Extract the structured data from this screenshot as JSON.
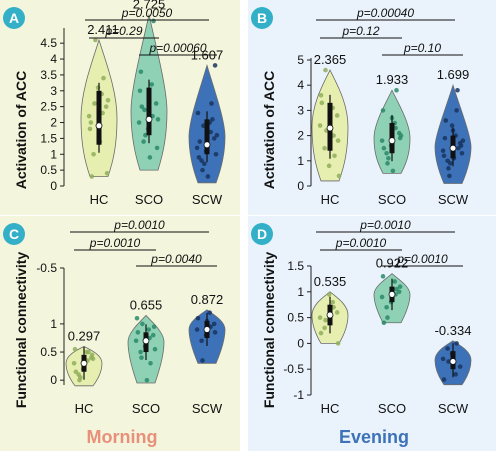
{
  "footer": {
    "left": "Morning",
    "right": "Evening",
    "left_color": "#e8907a",
    "right_color": "#3d72b8"
  },
  "colors": {
    "HC": "#e6eeb0",
    "SCO": "#8fd1b5",
    "SCW": "#3d72b8",
    "badge": "#33b0c8"
  },
  "chart_data": [
    {
      "panel": "A",
      "type": "violin",
      "ylabel": "Activation of ACC",
      "categories": [
        "HC",
        "SCO",
        "SCW"
      ],
      "ylim": [
        0,
        4.6
      ],
      "yticks": [
        0,
        0.5,
        1,
        1.5,
        2,
        2.5,
        3,
        3.5,
        4,
        4.5
      ],
      "ytick_labels": [
        "0",
        "0.5",
        "1",
        "1.5",
        "2",
        "2.5",
        "3",
        "3.5",
        "4",
        "4.5"
      ],
      "means": [
        "2.411",
        "2.725",
        "1.607"
      ],
      "violins": [
        {
          "min": 0.3,
          "max": 4.6,
          "median": 1.9,
          "q1": 1.3,
          "q3": 3.0
        },
        {
          "min": 0.5,
          "max": 5.4,
          "median": 2.1,
          "q1": 1.6,
          "q3": 3.1
        },
        {
          "min": 0.1,
          "max": 3.8,
          "median": 1.3,
          "q1": 1.0,
          "q3": 2.1
        }
      ],
      "points": [
        [
          2.2,
          2.9,
          1.0,
          2.5,
          3.1,
          1.8,
          2.3,
          2.6,
          0.4,
          1.6,
          2.0,
          3.4,
          4.6,
          2.7,
          1.4,
          0.3
        ],
        [
          2.0,
          3.2,
          1.4,
          2.6,
          1.8,
          3.0,
          2.2,
          2.4,
          1.2,
          2.9,
          3.6,
          5.2,
          1.6,
          2.1,
          0.9,
          2.5
        ],
        [
          1.2,
          2.0,
          0.8,
          1.5,
          1.1,
          2.3,
          1.7,
          0.5,
          3.8,
          1.3,
          0.9,
          2.6,
          1.9,
          1.0,
          0.3,
          1.4,
          2.1,
          0.7,
          1.6
        ]
      ],
      "comparisons": [
        {
          "pair": [
            0,
            2
          ],
          "label": "p=0.0050"
        },
        {
          "pair": [
            0,
            1
          ],
          "label": "p=0.29"
        },
        {
          "pair": [
            1,
            2
          ],
          "label": "p=0.00060"
        }
      ]
    },
    {
      "panel": "B",
      "type": "violin",
      "ylabel": "Activation of ACC",
      "categories": [
        "HC",
        "SCO",
        "SCW"
      ],
      "ylim": [
        0,
        5
      ],
      "yticks": [
        0,
        1,
        2,
        3,
        4,
        5
      ],
      "ytick_labels": [
        "0",
        "1",
        "2",
        "3",
        "4",
        "5"
      ],
      "means": [
        "2.365",
        "1.933",
        "1.699"
      ],
      "violins": [
        {
          "min": 0.2,
          "max": 4.6,
          "median": 2.3,
          "q1": 1.4,
          "q3": 3.3
        },
        {
          "min": 0.5,
          "max": 3.8,
          "median": 1.8,
          "q1": 1.3,
          "q3": 2.5
        },
        {
          "min": 0.1,
          "max": 4.0,
          "median": 1.5,
          "q1": 1.1,
          "q3": 2.0
        }
      ],
      "points": [
        [
          2.4,
          3.1,
          1.5,
          2.8,
          0.8,
          3.6,
          2.0,
          4.6,
          1.8,
          2.6,
          3.3,
          1.2,
          2.2,
          0.4
        ],
        [
          1.8,
          2.5,
          1.3,
          2.1,
          1.6,
          3.0,
          2.3,
          0.9,
          1.9,
          2.7,
          1.5,
          3.8,
          1.1,
          2.0,
          0.6
        ],
        [
          1.4,
          2.0,
          1.0,
          1.7,
          2.4,
          1.2,
          3.0,
          0.7,
          1.6,
          2.2,
          1.9,
          3.8,
          0.4,
          1.3,
          1.1,
          2.6,
          1.5,
          0.9,
          1.8
        ]
      ],
      "comparisons": [
        {
          "pair": [
            0,
            2
          ],
          "label": "p=0.00040"
        },
        {
          "pair": [
            0,
            1
          ],
          "label": "p=0.12"
        },
        {
          "pair": [
            1,
            2
          ],
          "label": "p=0.10"
        }
      ]
    },
    {
      "panel": "C",
      "type": "violin",
      "ylabel": "Functional connectivity",
      "categories": [
        "HC",
        "SCO",
        "SCW"
      ],
      "ylim": [
        -0.05,
        1.3
      ],
      "yticks": [
        0,
        0.5,
        1
      ],
      "ytick_labels": [
        "0",
        "0.5",
        "1"
      ],
      "extra_tick": "-0.5",
      "means": [
        "0.297",
        "0.655",
        "0.872"
      ],
      "violins": [
        {
          "min": -0.1,
          "max": 0.6,
          "median": 0.3,
          "q1": 0.15,
          "q3": 0.45
        },
        {
          "min": -0.05,
          "max": 1.15,
          "median": 0.7,
          "q1": 0.5,
          "q3": 0.85
        },
        {
          "min": 0.3,
          "max": 1.25,
          "median": 0.9,
          "q1": 0.75,
          "q3": 1.05
        }
      ],
      "points": [
        [
          0.3,
          0.5,
          0.1,
          0.4,
          0.2,
          0.55,
          0.35,
          0.0,
          0.45,
          0.25,
          0.15,
          0.5,
          0.05,
          0.38
        ],
        [
          0.7,
          0.9,
          0.5,
          0.8,
          0.6,
          1.1,
          0.75,
          0.4,
          0.95,
          0.65,
          0.85,
          0.3,
          1.0,
          0.55,
          0.0
        ],
        [
          0.9,
          1.2,
          0.7,
          1.0,
          0.8,
          1.1,
          0.95,
          0.35,
          0.85,
          1.05
        ]
      ],
      "comparisons": [
        {
          "pair": [
            0,
            2
          ],
          "label": "p=0.0010"
        },
        {
          "pair": [
            0,
            1
          ],
          "label": "p=0.0010"
        },
        {
          "pair": [
            1,
            2
          ],
          "label": "p=0.0040"
        }
      ]
    },
    {
      "panel": "D",
      "type": "violin",
      "ylabel": "Functional connectivity",
      "categories": [
        "HC",
        "SCO",
        "SCW"
      ],
      "ylim": [
        -1,
        1.5
      ],
      "yticks": [
        -1,
        -0.5,
        0,
        0.5,
        1,
        1.5
      ],
      "ytick_labels": [
        "-1",
        "-0.5",
        "0",
        "0.5",
        "1",
        "1.5"
      ],
      "means": [
        "0.535",
        "0.922",
        "-0.334"
      ],
      "violins": [
        {
          "min": 0.0,
          "max": 1.0,
          "median": 0.55,
          "q1": 0.35,
          "q3": 0.75
        },
        {
          "min": 0.4,
          "max": 1.35,
          "median": 0.95,
          "q1": 0.8,
          "q3": 1.1
        },
        {
          "min": -0.8,
          "max": 0.05,
          "median": -0.35,
          "q1": -0.5,
          "q3": -0.15
        }
      ],
      "points": [
        [
          0.5,
          0.8,
          0.3,
          0.6,
          0.95,
          0.2,
          0.7,
          0.45,
          0.0,
          0.65
        ],
        [
          0.9,
          1.2,
          0.7,
          1.0,
          0.8,
          1.3,
          0.95,
          0.5,
          1.1,
          0.85,
          0.4,
          1.05
        ],
        [
          -0.3,
          -0.6,
          -0.1,
          -0.45,
          -0.2,
          -0.7,
          0.0,
          -0.35
        ]
      ],
      "comparisons": [
        {
          "pair": [
            0,
            2
          ],
          "label": "p=0.0010"
        },
        {
          "pair": [
            0,
            1
          ],
          "label": "p=0.0010"
        },
        {
          "pair": [
            1,
            2
          ],
          "label": "p=0.0010"
        }
      ]
    }
  ]
}
